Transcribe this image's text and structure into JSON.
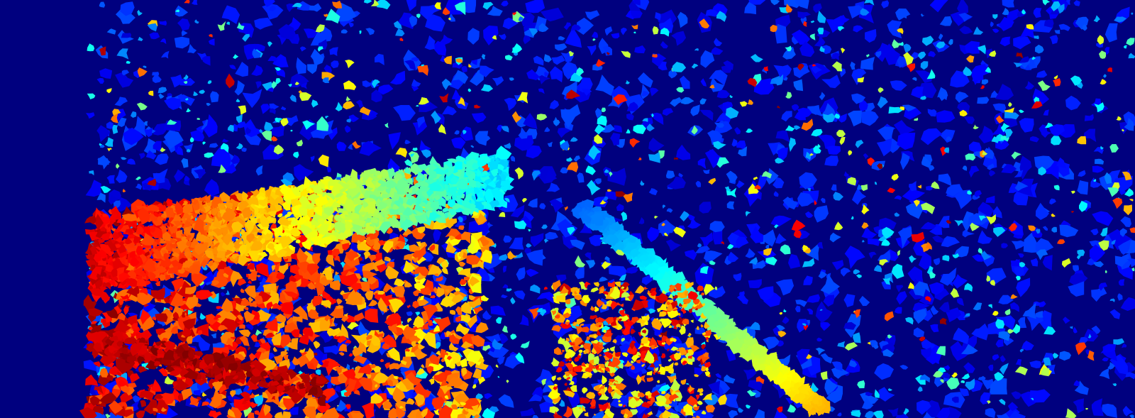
{
  "image": {
    "kind": "disparity-map",
    "colormap": "jet",
    "colors": {
      "background": "#00007f",
      "low": "#0000ff",
      "mid": "#00ffff",
      "high": "#ffff00",
      "max": "#ff0000"
    }
  }
}
